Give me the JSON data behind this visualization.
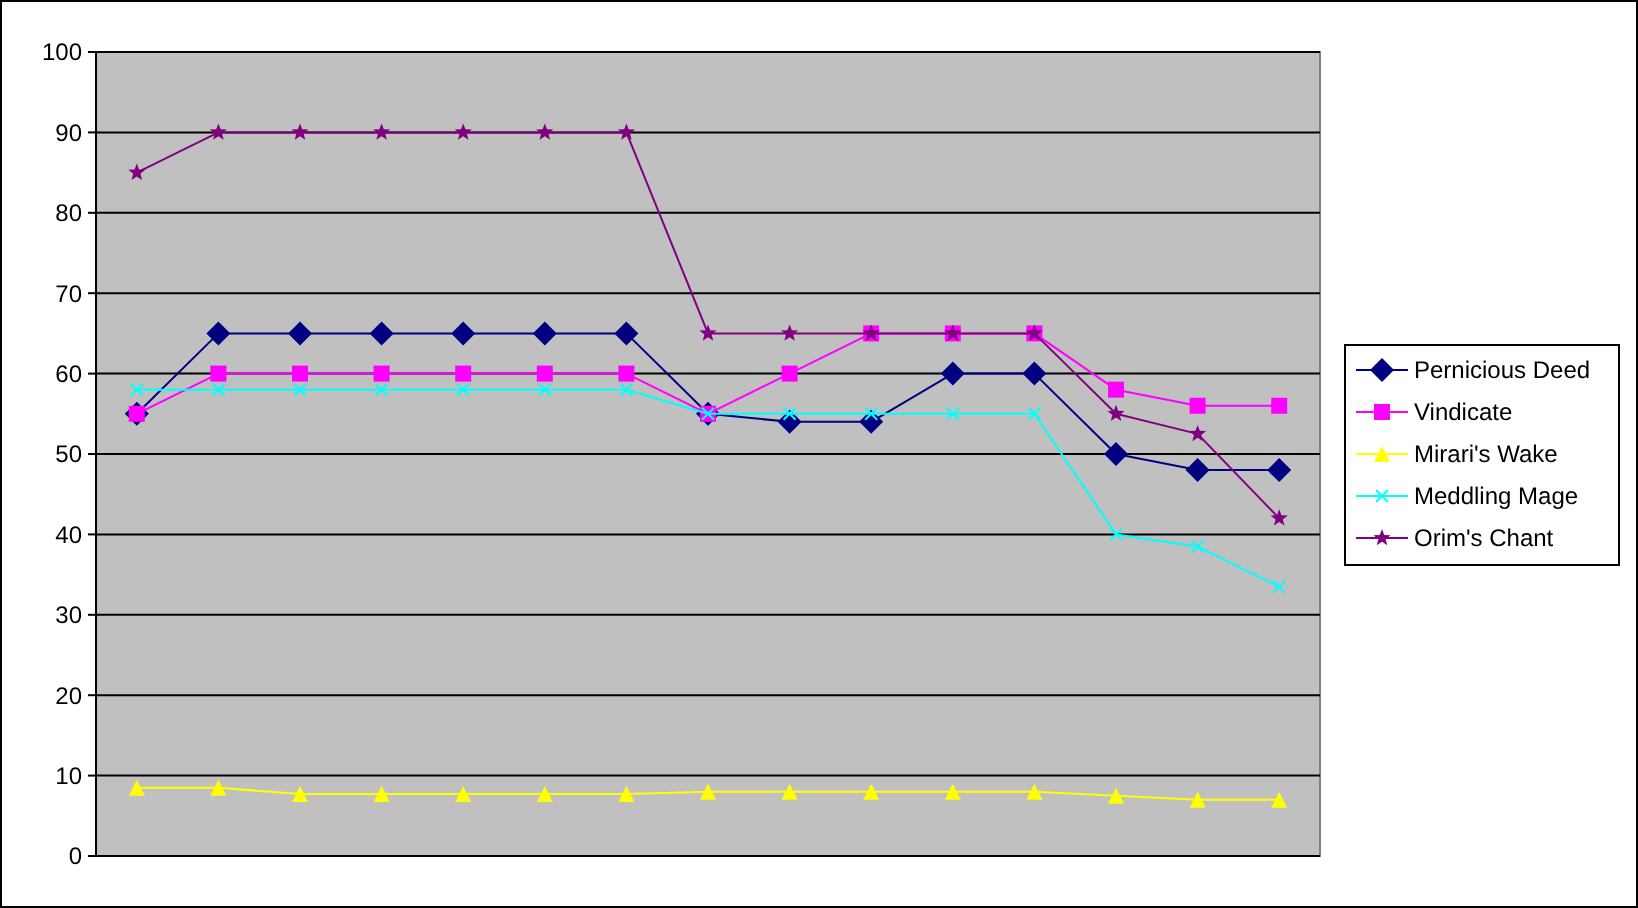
{
  "chart_data": {
    "type": "line",
    "categories": [
      null,
      null,
      null,
      null,
      null,
      null,
      null,
      null,
      null,
      null,
      null,
      null,
      null,
      null,
      null
    ],
    "ylim": [
      0,
      100
    ],
    "yticks": [
      0,
      10,
      20,
      30,
      40,
      50,
      60,
      70,
      80,
      90,
      100
    ],
    "grid": "y",
    "legend": "right",
    "series": [
      {
        "name": "Pernicious Deed",
        "color": "#000080",
        "marker": "diamond",
        "values": [
          55,
          65,
          65,
          65,
          65,
          65,
          65,
          55,
          54,
          54,
          60,
          60,
          50,
          48,
          48
        ]
      },
      {
        "name": "Vindicate",
        "color": "#ff00ff",
        "marker": "square",
        "values": [
          55,
          60,
          60,
          60,
          60,
          60,
          60,
          55,
          60,
          65,
          65,
          65,
          58,
          56,
          56
        ]
      },
      {
        "name": "Mirari's Wake",
        "color": "#ffff00",
        "marker": "triangle",
        "values": [
          8.5,
          8.5,
          7.7,
          7.7,
          7.7,
          7.7,
          7.7,
          8,
          8,
          8,
          8,
          8,
          7.5,
          7,
          7
        ]
      },
      {
        "name": "Meddling Mage",
        "color": "#00ffff",
        "marker": "cross",
        "values": [
          58,
          58,
          58,
          58,
          58,
          58,
          58,
          55,
          55,
          55,
          55,
          55,
          40,
          38.5,
          33.5
        ]
      },
      {
        "name": "Orim's Chant",
        "color": "#800080",
        "marker": "star",
        "values": [
          85,
          90,
          90,
          90,
          90,
          90,
          90,
          65,
          65,
          65,
          65,
          65,
          55,
          52.5,
          42
        ]
      }
    ]
  }
}
